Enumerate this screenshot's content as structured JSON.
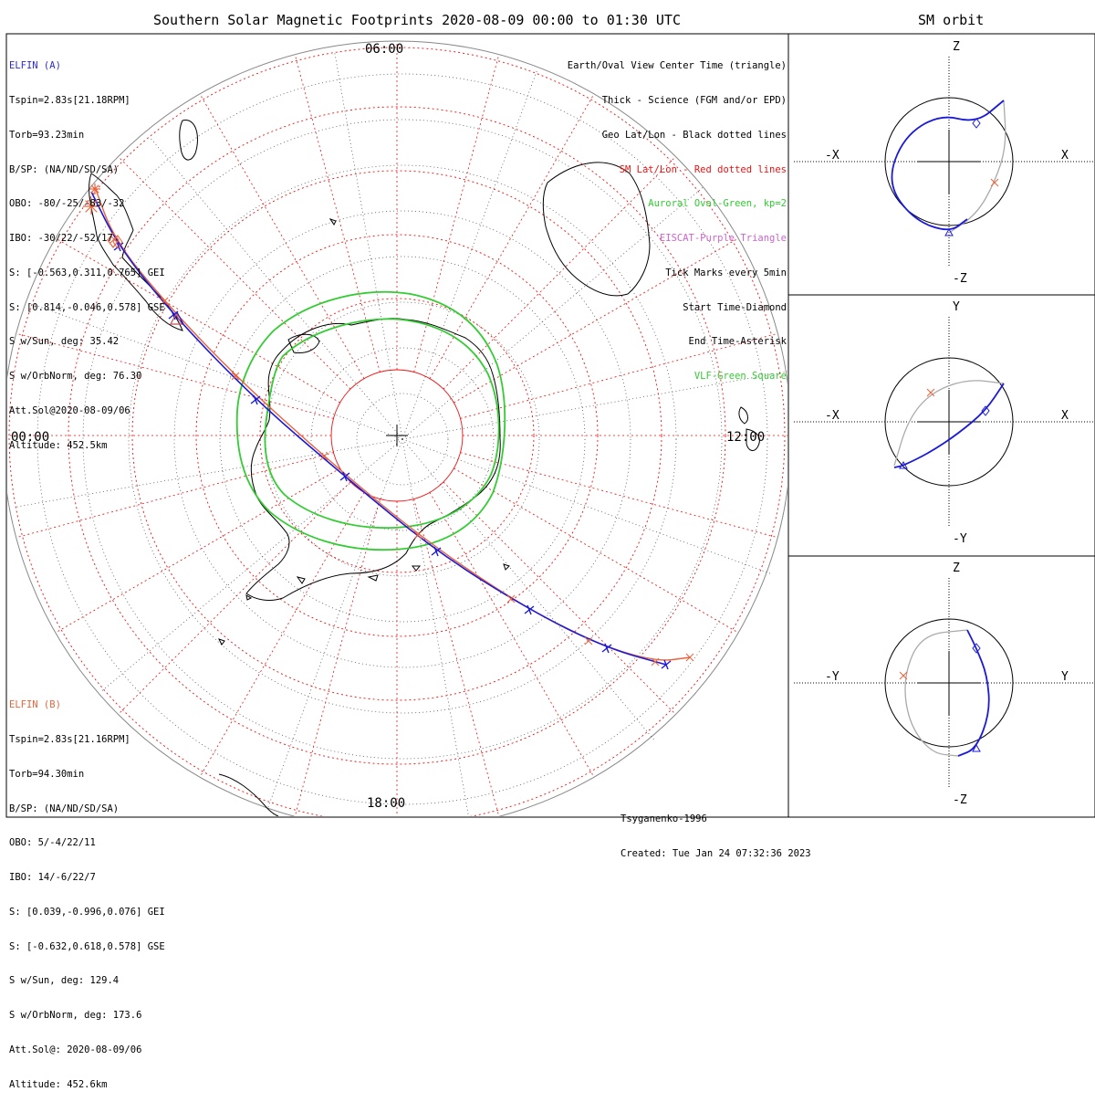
{
  "header": {
    "title": "Southern Solar Magnetic Footprints 2020-08-09 00:00 to 01:30 UTC",
    "right_title": "SM orbit"
  },
  "map": {
    "mlt_labels": {
      "top": "06:00",
      "left": "00:00",
      "right": "12:00",
      "bottom": "18:00"
    }
  },
  "legend": [
    {
      "text": "Earth/Oval View Center Time (triangle)",
      "color": "#000000"
    },
    {
      "text": "Thick - Science (FGM and/or EPD)",
      "color": "#000000"
    },
    {
      "text": "Geo Lat/Lon - Black dotted lines",
      "color": "#000000"
    },
    {
      "text": "SM Lat/Lon - Red dotted lines",
      "color": "#ee1111"
    },
    {
      "text": "Auroral Oval-Green, kp=2",
      "color": "#33cc33"
    },
    {
      "text": "EISCAT-Purple Triangle",
      "color": "#cc66cc"
    },
    {
      "text": "Tick Marks every 5min",
      "color": "#000000"
    },
    {
      "text": "Start Time-Diamond",
      "color": "#000000"
    },
    {
      "text": "End Time-Asterisk",
      "color": "#000000"
    },
    {
      "text": "VLF-Green Square",
      "color": "#33cc33"
    }
  ],
  "probe_a": {
    "name": "ELFIN (A)",
    "lines": [
      "Tspin=2.83s[21.18RPM]",
      "Torb=93.23min",
      "B/SP: (NA/ND/SD/SA)",
      "OBO: -80/-25/-83/-32",
      "IBO: -30/22/-52/17",
      "S: [-0.563,0.311,0.765] GEI",
      "S: [0.814,-0.046,0.578] GSE",
      "S w/Sun, deg: 35.42",
      "S w/OrbNorm, deg: 76.30",
      "Att.Sol@2020-08-09/06",
      "Altitude: 452.5km"
    ]
  },
  "probe_b": {
    "name": "ELFIN (B)",
    "lines": [
      "Tspin=2.83s[21.16RPM]",
      "Torb=94.30min",
      "B/SP: (NA/ND/SD/SA)",
      "OBO: 5/-4/22/11",
      "IBO: 14/-6/22/7",
      "S: [0.039,-0.996,0.076] GEI",
      "S: [-0.632,0.618,0.578] GSE",
      "S w/Sun, deg: 129.4",
      "S w/OrbNorm, deg: 173.6",
      "Att.Sol@: 2020-08-09/06",
      "Altitude: 452.6km"
    ]
  },
  "credit": {
    "model": "Tsyganenko-1996",
    "created": "Created: Tue Jan 24 07:32:36 2023"
  },
  "orbit_panels": [
    {
      "top": "Z",
      "bottom": "-Z",
      "left": "-X",
      "right": "X"
    },
    {
      "top": "Y",
      "bottom": "-Y",
      "left": "-X",
      "right": "X"
    },
    {
      "top": "Z",
      "bottom": "-Z",
      "left": "-Y",
      "right": "Y"
    }
  ],
  "colors": {
    "probe_a": "#1a1ad8",
    "probe_b": "#e8643c",
    "oval": "#33cc33",
    "sm_grid": "#ee1111",
    "orbit_other": "#aaaaaa"
  },
  "chart_data": {
    "type": "scatter",
    "projection": "southern polar, solar magnetic (MLT) coordinates",
    "mlt_ticks": [
      "00:00",
      "06:00",
      "12:00",
      "18:00"
    ],
    "auroral_oval_kp": 2,
    "tick_interval_min": 5,
    "time_range_utc": [
      "2020-08-09 00:00",
      "2020-08-09 01:30"
    ],
    "series": [
      {
        "name": "ELFIN (A)",
        "color": "#1a1ad8"
      },
      {
        "name": "ELFIN (B)",
        "color": "#e8643c"
      }
    ]
  }
}
